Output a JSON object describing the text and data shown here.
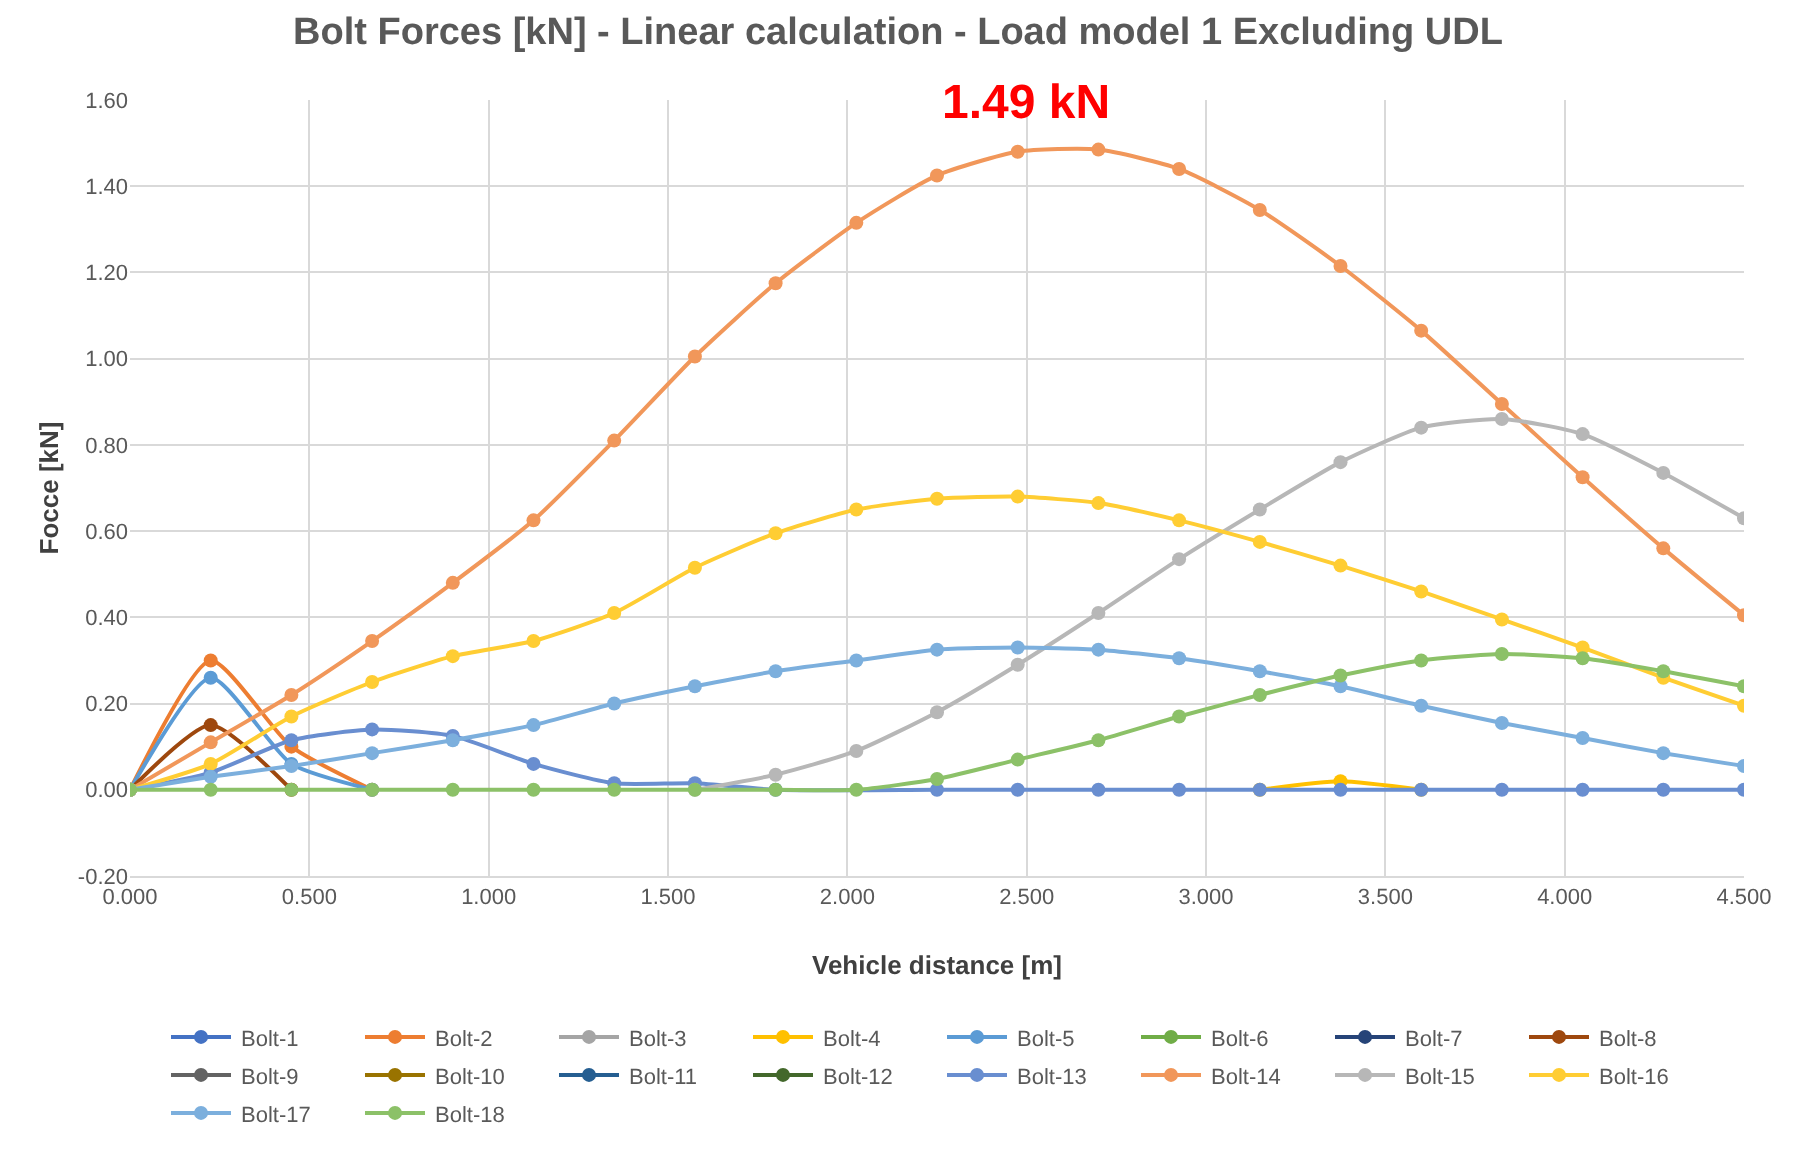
{
  "chart_data": {
    "type": "line",
    "title": "Bolt Forces [kN] - Linear calculation - Load model 1 Excluding UDL",
    "xlabel": "Vehicle distance [m]",
    "ylabel": "Focce [kN]",
    "annotations": [
      "1.49 kN"
    ],
    "x": [
      0,
      0.225,
      0.45,
      0.675,
      0.9,
      1.125,
      1.35,
      1.575,
      1.8,
      2.025,
      2.25,
      2.475,
      2.7,
      2.925,
      3.15,
      3.375,
      3.6,
      3.825,
      4.05,
      4.275,
      4.5
    ],
    "xlim": [
      0,
      4.5
    ],
    "xticks": [
      {
        "value": 0,
        "label": "0.000"
      },
      {
        "value": 0.5,
        "label": "0.500"
      },
      {
        "value": 1,
        "label": "1.000"
      },
      {
        "value": 1.5,
        "label": "1.500"
      },
      {
        "value": 2,
        "label": "2.000"
      },
      {
        "value": 2.5,
        "label": "2.500"
      },
      {
        "value": 3,
        "label": "3.000"
      },
      {
        "value": 3.5,
        "label": "3.500"
      },
      {
        "value": 4,
        "label": "4.000"
      },
      {
        "value": 4.5,
        "label": "4.500"
      }
    ],
    "ylim": [
      -0.2,
      1.6
    ],
    "yticks": [
      {
        "value": -0.2,
        "label": "-0.20"
      },
      {
        "value": 0,
        "label": "0.00"
      },
      {
        "value": 0.2,
        "label": "0.20"
      },
      {
        "value": 0.4,
        "label": "0.40"
      },
      {
        "value": 0.6,
        "label": "0.60"
      },
      {
        "value": 0.8,
        "label": "0.80"
      },
      {
        "value": 1,
        "label": "1.00"
      },
      {
        "value": 1.2,
        "label": "1.20"
      },
      {
        "value": 1.4,
        "label": "1.40"
      },
      {
        "value": 1.6,
        "label": "1.60"
      }
    ],
    "grid": true,
    "legend": "bottom",
    "marker": "circle",
    "line_style": "solid",
    "series": [
      {
        "name": "Bolt-1",
        "color": "#4472c4",
        "values": [
          null,
          null,
          null,
          null,
          null,
          null,
          null,
          null,
          null,
          null,
          null,
          null,
          null,
          null,
          null,
          null,
          null,
          null,
          null,
          null,
          null
        ]
      },
      {
        "name": "Bolt-2",
        "color": "#ed7d31",
        "values": [
          0,
          0.3,
          0.1,
          0,
          null,
          null,
          null,
          null,
          null,
          null,
          null,
          null,
          null,
          null,
          null,
          null,
          null,
          null,
          null,
          null,
          null
        ]
      },
      {
        "name": "Bolt-3",
        "color": "#a5a5a5",
        "values": [
          null,
          null,
          null,
          null,
          null,
          null,
          null,
          null,
          null,
          null,
          null,
          null,
          null,
          null,
          null,
          null,
          null,
          null,
          null,
          null,
          null
        ]
      },
      {
        "name": "Bolt-4",
        "color": "#ffc000",
        "values": [
          null,
          null,
          null,
          null,
          null,
          null,
          null,
          null,
          null,
          null,
          null,
          null,
          null,
          null,
          0,
          0.02,
          0,
          null,
          null,
          null,
          null
        ]
      },
      {
        "name": "Bolt-5",
        "color": "#5b9bd5",
        "values": [
          0,
          0.26,
          0.06,
          0,
          null,
          null,
          null,
          null,
          null,
          null,
          null,
          null,
          null,
          null,
          null,
          null,
          null,
          null,
          null,
          null,
          null
        ]
      },
      {
        "name": "Bolt-6",
        "color": "#70ad47",
        "values": [
          null,
          null,
          null,
          null,
          null,
          null,
          null,
          null,
          null,
          null,
          null,
          null,
          null,
          null,
          null,
          null,
          null,
          null,
          null,
          null,
          null
        ]
      },
      {
        "name": "Bolt-7",
        "color": "#264478",
        "values": [
          null,
          null,
          null,
          null,
          null,
          null,
          null,
          null,
          null,
          null,
          null,
          null,
          null,
          null,
          null,
          null,
          null,
          null,
          null,
          null,
          null
        ]
      },
      {
        "name": "Bolt-8",
        "color": "#9e480e",
        "values": [
          0,
          0.15,
          0,
          null,
          null,
          null,
          null,
          null,
          null,
          null,
          null,
          null,
          null,
          null,
          null,
          null,
          null,
          null,
          null,
          null,
          null
        ]
      },
      {
        "name": "Bolt-9",
        "color": "#636363",
        "values": [
          null,
          null,
          null,
          null,
          null,
          null,
          null,
          null,
          null,
          null,
          null,
          null,
          null,
          null,
          null,
          null,
          null,
          null,
          null,
          null,
          null
        ]
      },
      {
        "name": "Bolt-10",
        "color": "#997300",
        "values": [
          null,
          null,
          null,
          null,
          null,
          null,
          null,
          null,
          null,
          null,
          null,
          null,
          null,
          null,
          null,
          null,
          null,
          null,
          null,
          null,
          null
        ]
      },
      {
        "name": "Bolt-11",
        "color": "#255e91",
        "values": [
          null,
          null,
          null,
          null,
          null,
          null,
          null,
          null,
          null,
          null,
          null,
          null,
          null,
          null,
          null,
          null,
          null,
          null,
          null,
          null,
          null
        ]
      },
      {
        "name": "Bolt-12",
        "color": "#43682b",
        "values": [
          null,
          null,
          null,
          null,
          null,
          null,
          null,
          null,
          null,
          null,
          null,
          null,
          null,
          null,
          null,
          null,
          null,
          null,
          null,
          null,
          null
        ]
      },
      {
        "name": "Bolt-13",
        "color": "#698ed0",
        "values": [
          0,
          0.04,
          0.115,
          0.14,
          0.125,
          0.06,
          0.015,
          0.015,
          0,
          null,
          0,
          0,
          0,
          0,
          0,
          0,
          0,
          0,
          0,
          0,
          0
        ]
      },
      {
        "name": "Bolt-14",
        "color": "#f1975a",
        "values": [
          0,
          0.11,
          0.22,
          0.345,
          0.48,
          0.625,
          0.81,
          1.005,
          1.175,
          1.315,
          1.425,
          1.48,
          1.485,
          1.44,
          1.345,
          1.215,
          1.065,
          0.895,
          0.725,
          0.56,
          0.405
        ]
      },
      {
        "name": "Bolt-15",
        "color": "#b7b7b7",
        "values": [
          null,
          null,
          null,
          null,
          null,
          null,
          null,
          0,
          0.035,
          0.09,
          0.18,
          0.29,
          0.41,
          0.535,
          0.65,
          0.76,
          0.84,
          0.86,
          0.825,
          0.735,
          0.63
        ]
      },
      {
        "name": "Bolt-16",
        "color": "#ffcd33",
        "values": [
          0,
          0.06,
          0.17,
          0.25,
          0.31,
          0.345,
          0.41,
          0.515,
          0.595,
          0.65,
          0.675,
          0.68,
          0.665,
          0.625,
          0.575,
          0.52,
          0.46,
          0.395,
          0.33,
          0.26,
          0.195
        ]
      },
      {
        "name": "Bolt-17",
        "color": "#7cafdd",
        "values": [
          0,
          0.03,
          0.055,
          0.085,
          0.115,
          0.15,
          0.2,
          0.24,
          0.275,
          0.3,
          0.325,
          0.33,
          0.325,
          0.305,
          0.275,
          0.24,
          0.195,
          0.155,
          0.12,
          0.085,
          0.055
        ]
      },
      {
        "name": "Bolt-18",
        "color": "#8cc168",
        "values": [
          0,
          0,
          0,
          0,
          0,
          0,
          0,
          0,
          0,
          0,
          0.025,
          0.07,
          0.115,
          0.17,
          0.22,
          0.265,
          0.3,
          0.315,
          0.305,
          0.275,
          0.24
        ]
      }
    ]
  }
}
